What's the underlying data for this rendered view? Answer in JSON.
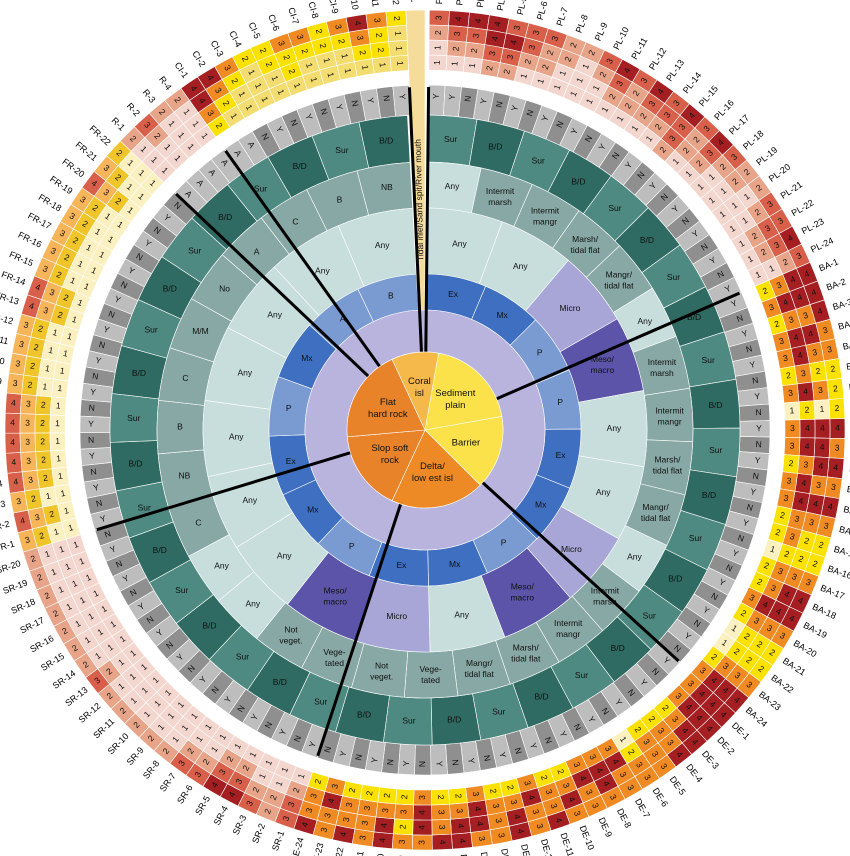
{
  "colors": {
    "level1": "#f3d7cf",
    "level2": "#e7a488",
    "level3": "#d8604a",
    "level4": "#a51f22",
    "yellow1": "#fbf0c0",
    "yellow2": "#f3dd70",
    "yellow3": "#efc52a",
    "yellow4": "#fae100",
    "orange2": "#f7b55a",
    "orange3": "#f08a22",
    "orange4": "#e05a1a",
    "yn_Y": "#bdbdbd",
    "yn_N": "#8f8f8f",
    "ring_veg": "#87a8a4",
    "ring_bd": "#2f6b63",
    "ring_sur": "#4f8a82",
    "ring_any": "#c7dedd",
    "ring_lav": "#b9b4de",
    "ring_lav2": "#a8a6d6",
    "ring_blue": "#3f6fc0",
    "ring_blue2": "#7a9ad2",
    "ring_meso": "#5c54a8",
    "center_orange": "#e8832a",
    "center_yellow": "#fbe24a",
    "center_coral": "#f5b84a",
    "center_slop": "#ee8a26",
    "tsr": "#f6dc9a"
  },
  "center": {
    "sectors": [
      {
        "label": "Sediment plain",
        "lines": [
          "Sediment",
          "plain"
        ]
      },
      {
        "label": "Barrier",
        "lines": [
          "Barrier"
        ]
      },
      {
        "label": "Delta/ low est isl",
        "lines": [
          "Delta/",
          "low est isl"
        ]
      },
      {
        "label": "Slop soft rock",
        "lines": [
          "Slop soft",
          "rock"
        ]
      },
      {
        "label": "Flat hard rock",
        "lines": [
          "Flat",
          "hard rock"
        ]
      },
      {
        "label": "Coral isl",
        "lines": [
          "Coral",
          "isl"
        ]
      }
    ]
  },
  "tsr_label": "TSR",
  "tsr_text": "Tidal inlet/Sand spit/River mouth",
  "ring_tidal": [
    "Ex",
    "Mx",
    "P",
    "P",
    "Ex",
    "Mx",
    "P",
    "Mx",
    "Ex",
    "P",
    "Mx",
    "Ex",
    "P",
    "Mx",
    "A",
    "B"
  ],
  "ring_tidal2": [
    "Any",
    "Any",
    "Micro",
    "Meso/ macro",
    "Any",
    "Any",
    "Micro",
    "Meso/ macro",
    "Any",
    "Micro",
    "Meso/ macro",
    "Any",
    "Any",
    "Any",
    "Any",
    "Any",
    "Any",
    "Any"
  ],
  "ring_marsh": [
    "Any",
    "Intermit marsh",
    "Intermit mangr",
    "Marsh/ tidal flat",
    "Mangr/ tidal flat",
    "Any",
    "Intermit marsh",
    "Intermit mangr",
    "Marsh/ tidal flat",
    "Mangr/ tidal flat",
    "Any",
    "Intermit marsh",
    "Intermit mangr",
    "Marsh/ tidal flat",
    "Mangr/ tidal flat",
    "Vege- tated",
    "Not veget.",
    "Vege- tated",
    "Not veget.",
    "Any",
    "Any",
    "C",
    "NB",
    "B",
    "C",
    "M/M",
    "No",
    "A",
    "C",
    "B",
    "NB"
  ],
  "ring_bd": [
    "Sur",
    "B/D",
    "Sur",
    "B/D",
    "Sur",
    "B/D",
    "Sur",
    "B/D",
    "Sur",
    "B/D",
    "Sur",
    "B/D",
    "Sur",
    "B/D",
    "Sur",
    "B/D",
    "Sur",
    "B/D",
    "Sur",
    "B/D"
  ],
  "sectors": [
    {
      "id": "PL",
      "labels": [
        "PL-1",
        "PL-2",
        "PL-3",
        "PL-4",
        "PL-5",
        "PL-6",
        "PL-7",
        "PL-8",
        "PL-9",
        "PL-10",
        "PL-11",
        "PL-12",
        "PL-13",
        "PL-14",
        "PL-15",
        "PL-16",
        "PL-17",
        "PL-18",
        "PL-19",
        "PL-20",
        "PL-21",
        "PL-22",
        "PL-23",
        "PL-24"
      ]
    },
    {
      "id": "BA",
      "labels": [
        "BA-1",
        "BA-2",
        "BA-3",
        "BA-4",
        "BA-5",
        "BA-6",
        "BA-7",
        "BA-8",
        "BA-9",
        "BA-10",
        "BA-11",
        "BA-12",
        "BA-13",
        "BA-14",
        "BA-15",
        "BA-16",
        "BA-17",
        "BA-18",
        "BA-19",
        "BA-20",
        "BA-21",
        "BA-22",
        "BA-23",
        "BA-24"
      ]
    },
    {
      "id": "DE",
      "labels": [
        "DE-1",
        "DE-2",
        "DE-3",
        "DE-4",
        "DE-5",
        "DE-6",
        "DE-7",
        "DE-8",
        "DE-9",
        "DE-10",
        "DE-11",
        "DE-12",
        "DE-13",
        "DE-14",
        "DE-15",
        "DE-16",
        "DE-17",
        "DE-18",
        "DE-19",
        "DE-20",
        "DE-21",
        "DE-22",
        "DE-23",
        "DE-24"
      ]
    },
    {
      "id": "SR",
      "labels": [
        "SR-1",
        "SR-2",
        "SR-3",
        "SR-4",
        "SR-5",
        "SR-6",
        "SR-7",
        "SR-8",
        "SR-9",
        "SR-10",
        "SR-11",
        "SR-12",
        "SR-13",
        "SR-14",
        "SR-15",
        "SR-16",
        "SR-17",
        "SR-18",
        "SR-19",
        "SR-20"
      ]
    },
    {
      "id": "FR",
      "labels": [
        "FR-1",
        "FR-2",
        "FR-3",
        "FR-4",
        "FR-5",
        "FR-6",
        "FR-7",
        "FR-8",
        "FR-9",
        "FR-10",
        "FR-11",
        "FR-12",
        "FR-13",
        "FR-14",
        "FR-15",
        "FR-16",
        "FR-17",
        "FR-18",
        "FR-19",
        "FR-20",
        "FR-21",
        "FR-22"
      ]
    },
    {
      "id": "R",
      "labels": [
        "R-1",
        "R-2",
        "R-3",
        "R-4"
      ]
    },
    {
      "id": "CI",
      "labels": [
        "CI-1",
        "CI-2",
        "CI-3",
        "CI-4",
        "CI-5",
        "CI-6",
        "CI-7",
        "CI-8",
        "CI-9",
        "CI-10",
        "CI-11",
        "CI-12"
      ]
    }
  ],
  "outer_values": {
    "PL": [
      [
        3,
        2,
        1,
        "Y"
      ],
      [
        4,
        3,
        2,
        "Y"
      ],
      [
        4,
        3,
        2,
        "N"
      ],
      [
        4,
        4,
        3,
        "Y"
      ],
      [
        3,
        4,
        3,
        "N"
      ],
      [
        3,
        3,
        2,
        "Y"
      ],
      [
        3,
        2,
        2,
        "N"
      ],
      [
        2,
        2,
        1,
        "Y"
      ],
      [
        2,
        1,
        1,
        "N"
      ],
      [
        3,
        2,
        1,
        "Y"
      ],
      [
        4,
        3,
        2,
        "N"
      ],
      [
        3,
        2,
        2,
        "Y"
      ],
      [
        4,
        3,
        2,
        "N"
      ],
      [
        3,
        3,
        2,
        "Y"
      ],
      [
        4,
        3,
        3,
        "N"
      ],
      [
        3,
        2,
        2,
        "Y"
      ],
      [
        4,
        3,
        2,
        "N"
      ],
      [
        3,
        2,
        1,
        "Y"
      ],
      [
        2,
        2,
        1,
        "N"
      ],
      [
        2,
        1,
        1,
        "Y"
      ],
      [
        3,
        2,
        1,
        "N"
      ],
      [
        3,
        3,
        2,
        "Y"
      ],
      [
        4,
        3,
        2,
        "N"
      ],
      [
        3,
        2,
        1,
        "Y"
      ]
    ],
    "BA": [
      [
        4,
        4,
        3,
        "Y"
      ],
      [
        4,
        4,
        4,
        "N"
      ],
      [
        4,
        3,
        3,
        "Y"
      ],
      [
        3,
        4,
        4,
        "N"
      ],
      [
        3,
        3,
        4,
        "Y"
      ],
      [
        2,
        2,
        3,
        "N"
      ],
      [
        2,
        3,
        4,
        "Y"
      ],
      [
        2,
        1,
        2,
        "N"
      ],
      [
        4,
        4,
        4,
        "Y"
      ],
      [
        3,
        4,
        4,
        "N"
      ],
      [
        4,
        4,
        3,
        "Y"
      ],
      [
        3,
        3,
        4,
        "N"
      ],
      [
        4,
        4,
        4,
        "Y"
      ],
      [
        3,
        3,
        3,
        "N"
      ],
      [
        2,
        2,
        3,
        "Y"
      ],
      [
        2,
        2,
        2,
        "N"
      ],
      [
        3,
        3,
        3,
        "Y"
      ],
      [
        4,
        4,
        3,
        "N"
      ],
      [
        4,
        4,
        4,
        "Y"
      ],
      [
        3,
        3,
        3,
        "N"
      ],
      [
        2,
        2,
        2,
        "Y"
      ],
      [
        2,
        2,
        2,
        "N"
      ],
      [
        3,
        3,
        3,
        "Y"
      ],
      [
        4,
        4,
        4,
        "N"
      ]
    ],
    "DE": [
      [
        4,
        4,
        4,
        "Y"
      ],
      [
        4,
        4,
        4,
        "N"
      ],
      [
        4,
        4,
        3,
        "Y"
      ],
      [
        4,
        3,
        3,
        "N"
      ],
      [
        3,
        3,
        3,
        "Y"
      ],
      [
        3,
        3,
        2,
        "N"
      ],
      [
        3,
        3,
        4,
        "Y"
      ],
      [
        3,
        4,
        4,
        "N"
      ],
      [
        3,
        3,
        4,
        "Y"
      ],
      [
        3,
        4,
        3,
        "N"
      ],
      [
        4,
        3,
        3,
        "Y"
      ],
      [
        3,
        3,
        4,
        "N"
      ],
      [
        4,
        4,
        3,
        "Y"
      ],
      [
        3,
        3,
        3,
        "N"
      ],
      [
        3,
        4,
        4,
        "Y"
      ],
      [
        4,
        4,
        3,
        "N"
      ],
      [
        4,
        3,
        3,
        "Y"
      ],
      [
        3,
        4,
        4,
        "N"
      ],
      [
        3,
        2,
        3,
        "Y"
      ],
      [
        4,
        4,
        3,
        "N"
      ],
      [
        3,
        3,
        3,
        "Y"
      ],
      [
        4,
        3,
        3,
        "N"
      ],
      [
        3,
        3,
        4,
        "Y"
      ],
      [
        4,
        3,
        3,
        "N"
      ]
    ],
    "SR": [
      [
        3,
        3,
        2,
        "Y"
      ],
      [
        2,
        2,
        1,
        "N"
      ],
      [
        3,
        2,
        1,
        "Y"
      ],
      [
        4,
        3,
        2,
        "N"
      ],
      [
        4,
        3,
        2,
        "Y"
      ],
      [
        3,
        2,
        1,
        "N"
      ],
      [
        3,
        2,
        1,
        "Y"
      ],
      [
        2,
        1,
        1,
        "N"
      ],
      [
        2,
        1,
        1,
        "Y"
      ],
      [
        2,
        1,
        1,
        "N"
      ],
      [
        2,
        1,
        1,
        "Y"
      ],
      [
        2,
        1,
        1,
        "N"
      ],
      [
        3,
        2,
        1,
        "Y"
      ],
      [
        2,
        1,
        1,
        "N"
      ],
      [
        2,
        1,
        1,
        "Y"
      ],
      [
        2,
        1,
        1,
        "N"
      ],
      [
        2,
        1,
        1,
        "Y"
      ],
      [
        2,
        1,
        1,
        "N"
      ],
      [
        2,
        1,
        1,
        "Y"
      ],
      [
        2,
        1,
        1,
        "N"
      ]
    ],
    "FR": [
      [
        3,
        2,
        1,
        "Y"
      ],
      [
        4,
        3,
        2,
        "N"
      ],
      [
        3,
        2,
        1,
        "Y"
      ],
      [
        4,
        3,
        2,
        "N"
      ],
      [
        4,
        3,
        2,
        "Y"
      ],
      [
        4,
        3,
        2,
        "N"
      ],
      [
        4,
        3,
        2,
        "Y"
      ],
      [
        4,
        3,
        2,
        "N"
      ],
      [
        3,
        2,
        1,
        "Y"
      ],
      [
        3,
        2,
        1,
        "N"
      ],
      [
        3,
        2,
        1,
        "Y"
      ],
      [
        3,
        2,
        1,
        "N"
      ],
      [
        4,
        3,
        2,
        "Y"
      ],
      [
        4,
        3,
        2,
        "N"
      ],
      [
        3,
        2,
        1,
        "Y"
      ],
      [
        3,
        2,
        1,
        "N"
      ],
      [
        3,
        2,
        1,
        "Y"
      ],
      [
        3,
        2,
        1,
        "N"
      ],
      [
        3,
        2,
        1,
        "Y"
      ],
      [
        4,
        3,
        2,
        "N"
      ],
      [
        3,
        2,
        1,
        "Y"
      ],
      [
        2,
        1,
        1,
        "N"
      ]
    ],
    "R": [
      [
        2,
        1,
        1,
        "A"
      ],
      [
        3,
        2,
        1,
        "A"
      ],
      [
        2,
        1,
        1,
        "A"
      ],
      [
        2,
        1,
        1,
        "A"
      ]
    ],
    "CI": [
      [
        4,
        4,
        3,
        "A"
      ],
      [
        4,
        3,
        2,
        "A"
      ],
      [
        3,
        2,
        1,
        "N"
      ],
      [
        2,
        1,
        1,
        "Y"
      ],
      [
        2,
        2,
        1,
        "N"
      ],
      [
        3,
        2,
        2,
        "Y"
      ],
      [
        3,
        2,
        1,
        "N"
      ],
      [
        2,
        2,
        1,
        "Y"
      ],
      [
        3,
        2,
        1,
        "N"
      ],
      [
        4,
        3,
        2,
        "Y"
      ],
      [
        3,
        2,
        2,
        "N"
      ],
      [
        2,
        1,
        1,
        "Y"
      ]
    ]
  }
}
